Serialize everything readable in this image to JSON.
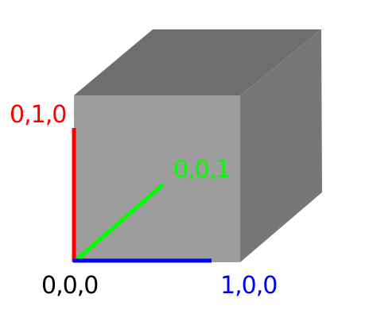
{
  "colors": {
    "background": "#ffffff",
    "cube_top": "#6e6e6e",
    "cube_front": "#9d9d9d",
    "cube_side": "#777777",
    "x_axis": "#0000ff",
    "y_axis": "#ff0000",
    "z_axis": "#00ff00",
    "origin_label": "#000000"
  },
  "labels": {
    "origin": "0,0,0",
    "x": "1,0,0",
    "y": "0,1,0",
    "z": "0,0,1"
  }
}
